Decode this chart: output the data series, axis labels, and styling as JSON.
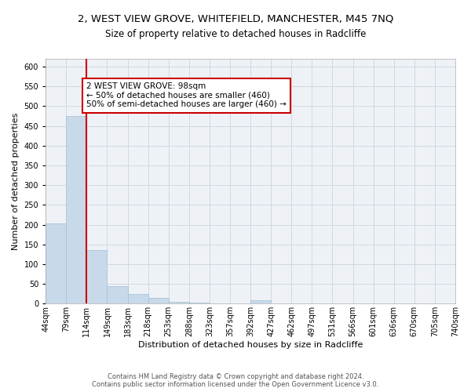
{
  "title": "2, WEST VIEW GROVE, WHITEFIELD, MANCHESTER, M45 7NQ",
  "subtitle": "Size of property relative to detached houses in Radcliffe",
  "xlabel": "Distribution of detached houses by size in Radcliffe",
  "ylabel": "Number of detached properties",
  "bar_values": [
    203,
    476,
    136,
    44,
    25,
    14,
    5,
    2,
    1,
    0,
    9,
    1,
    0,
    0,
    0,
    0,
    0,
    0,
    0,
    0
  ],
  "bin_labels": [
    "44sqm",
    "79sqm",
    "114sqm",
    "149sqm",
    "183sqm",
    "218sqm",
    "253sqm",
    "288sqm",
    "323sqm",
    "357sqm",
    "392sqm",
    "427sqm",
    "462sqm",
    "497sqm",
    "531sqm",
    "566sqm",
    "601sqm",
    "636sqm",
    "670sqm",
    "705sqm",
    "740sqm"
  ],
  "bar_color": "#c8d9ea",
  "bar_edge_color": "#a8c4d8",
  "grid_color": "#d0d8e0",
  "bg_color": "#eef2f7",
  "vline_x": 2,
  "vline_color": "#cc0000",
  "annotation_text": "2 WEST VIEW GROVE: 98sqm\n← 50% of detached houses are smaller (460)\n50% of semi-detached houses are larger (460) →",
  "annotation_box_color": "#ffffff",
  "annotation_box_edge": "#cc0000",
  "ylim": [
    0,
    620
  ],
  "yticks": [
    0,
    50,
    100,
    150,
    200,
    250,
    300,
    350,
    400,
    450,
    500,
    550,
    600
  ],
  "footer_line1": "Contains HM Land Registry data © Crown copyright and database right 2024.",
  "footer_line2": "Contains public sector information licensed under the Open Government Licence v3.0.",
  "title_fontsize": 9.5,
  "subtitle_fontsize": 8.5,
  "axis_label_fontsize": 8,
  "tick_fontsize": 7,
  "annotation_fontsize": 7.5,
  "footer_fontsize": 6
}
